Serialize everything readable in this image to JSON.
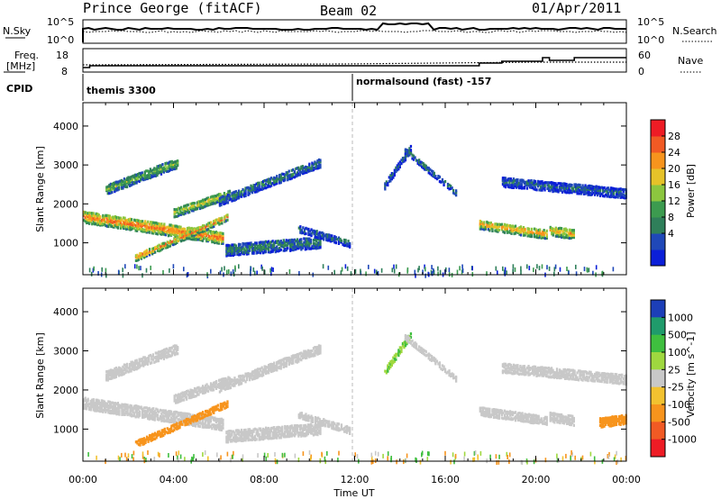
{
  "header": {
    "station": "Prince George (fitACF)",
    "beam": "Beam 02",
    "date": "01/Apr/2011"
  },
  "side_labels": {
    "nsky": "N.Sky",
    "nsky_ticks": [
      "10^5",
      "10^0"
    ],
    "nsearch": "N.Search",
    "nsearch_ticks": [
      "10^5",
      "10^0"
    ],
    "freq_line1": "Freq.",
    "freq_line2": "[MHz]",
    "freq_ticks": [
      "18",
      "8"
    ],
    "nave": "Nave",
    "nave_ticks": [
      "60",
      "0"
    ],
    "cpid": "CPID"
  },
  "cpid_segments": [
    {
      "label": "themis 3300",
      "start_hour": 0
    },
    {
      "label": "normalsound (fast) -157",
      "start_hour": 12
    }
  ],
  "axes": {
    "xlabel": "Time UT",
    "ylabel": "Slant Range [km]",
    "xticks": [
      "00:00",
      "04:00",
      "08:00",
      "12:00",
      "16:00",
      "20:00",
      "00:00"
    ],
    "yticks": [
      "1000",
      "2000",
      "3000",
      "4000"
    ]
  },
  "power_bar": {
    "label": "Power [dB]",
    "ticks": [
      "28",
      "24",
      "20",
      "16",
      "12",
      "8",
      "4"
    ],
    "colors": [
      "#0b1fd8",
      "#1f48b8",
      "#2f7f5a",
      "#3c9b4f",
      "#8cc63f",
      "#e6c229",
      "#f7941d",
      "#f15a24",
      "#ee1c25"
    ]
  },
  "velocity_bar": {
    "label": "Velocity [m s^-1]",
    "ticks": [
      "1000",
      "500",
      "100",
      "25",
      "-25",
      "-100",
      "-500",
      "-1000"
    ],
    "colors": [
      "#1c3fb8",
      "#1f9b6b",
      "#3fbf3f",
      "#9fd83f",
      "#c8c8c8",
      "#f2c230",
      "#f7941d",
      "#f15a24",
      "#ee1c25"
    ]
  },
  "chart_data": {
    "type": "heatmap",
    "x_range_hours": [
      0,
      24
    ],
    "y_range_km": [
      180,
      4600
    ],
    "panels": [
      {
        "name": "power",
        "scatter_bands": [
          {
            "t0": 0.0,
            "t1": 6.2,
            "r0": 1700,
            "r1": 1150,
            "w": 300,
            "v": 24
          },
          {
            "t0": 1.0,
            "t1": 4.2,
            "r0": 2400,
            "r1": 3100,
            "w": 250,
            "v": 14
          },
          {
            "t0": 2.3,
            "t1": 6.4,
            "r0": 650,
            "r1": 1700,
            "w": 170,
            "v": 22
          },
          {
            "t0": 4.0,
            "t1": 6.5,
            "r0": 1800,
            "r1": 2300,
            "w": 220,
            "v": 18
          },
          {
            "t0": 6.0,
            "t1": 10.5,
            "r0": 2100,
            "r1": 3100,
            "w": 230,
            "v": 10
          },
          {
            "t0": 6.3,
            "t1": 10.5,
            "r0": 850,
            "r1": 1050,
            "w": 300,
            "v": 10
          },
          {
            "t0": 9.5,
            "t1": 11.8,
            "r0": 1400,
            "r1": 1000,
            "w": 180,
            "v": 8
          },
          {
            "t0": 13.3,
            "t1": 14.5,
            "r0": 2500,
            "r1": 3500,
            "w": 180,
            "v": 8
          },
          {
            "t0": 14.2,
            "t1": 16.5,
            "r0": 3400,
            "r1": 2300,
            "w": 150,
            "v": 9
          },
          {
            "t0": 17.5,
            "t1": 20.5,
            "r0": 1500,
            "r1": 1250,
            "w": 230,
            "v": 22
          },
          {
            "t0": 20.6,
            "t1": 21.7,
            "r0": 1350,
            "r1": 1250,
            "w": 250,
            "v": 20
          },
          {
            "t0": 18.5,
            "t1": 24.0,
            "r0": 2600,
            "r1": 2300,
            "w": 250,
            "v": 8
          }
        ]
      },
      {
        "name": "velocity",
        "scatter_bands": [
          {
            "t0": 0.0,
            "t1": 6.2,
            "r0": 1700,
            "r1": 1150,
            "w": 300,
            "v": 0
          },
          {
            "t0": 1.0,
            "t1": 4.2,
            "r0": 2400,
            "r1": 3100,
            "w": 250,
            "v": 0
          },
          {
            "t0": 2.3,
            "t1": 6.4,
            "r0": 650,
            "r1": 1700,
            "w": 170,
            "v": -150
          },
          {
            "t0": 4.0,
            "t1": 6.5,
            "r0": 1800,
            "r1": 2300,
            "w": 220,
            "v": 0
          },
          {
            "t0": 6.0,
            "t1": 10.5,
            "r0": 2100,
            "r1": 3100,
            "w": 230,
            "v": 0
          },
          {
            "t0": 6.3,
            "t1": 10.5,
            "r0": 850,
            "r1": 1050,
            "w": 300,
            "v": 0
          },
          {
            "t0": 9.5,
            "t1": 11.8,
            "r0": 1400,
            "r1": 1000,
            "w": 180,
            "v": 0
          },
          {
            "t0": 13.3,
            "t1": 14.5,
            "r0": 2500,
            "r1": 3500,
            "w": 180,
            "v": 60
          },
          {
            "t0": 14.2,
            "t1": 16.5,
            "r0": 3400,
            "r1": 2300,
            "w": 150,
            "v": 0
          },
          {
            "t0": 17.5,
            "t1": 20.5,
            "r0": 1500,
            "r1": 1250,
            "w": 230,
            "v": 0
          },
          {
            "t0": 20.6,
            "t1": 21.7,
            "r0": 1350,
            "r1": 1250,
            "w": 250,
            "v": 0
          },
          {
            "t0": 22.8,
            "t1": 24.0,
            "r0": 1200,
            "r1": 1300,
            "w": 250,
            "v": -200
          },
          {
            "t0": 18.5,
            "t1": 24.0,
            "r0": 2600,
            "r1": 2300,
            "w": 250,
            "v": 0
          }
        ]
      }
    ]
  }
}
